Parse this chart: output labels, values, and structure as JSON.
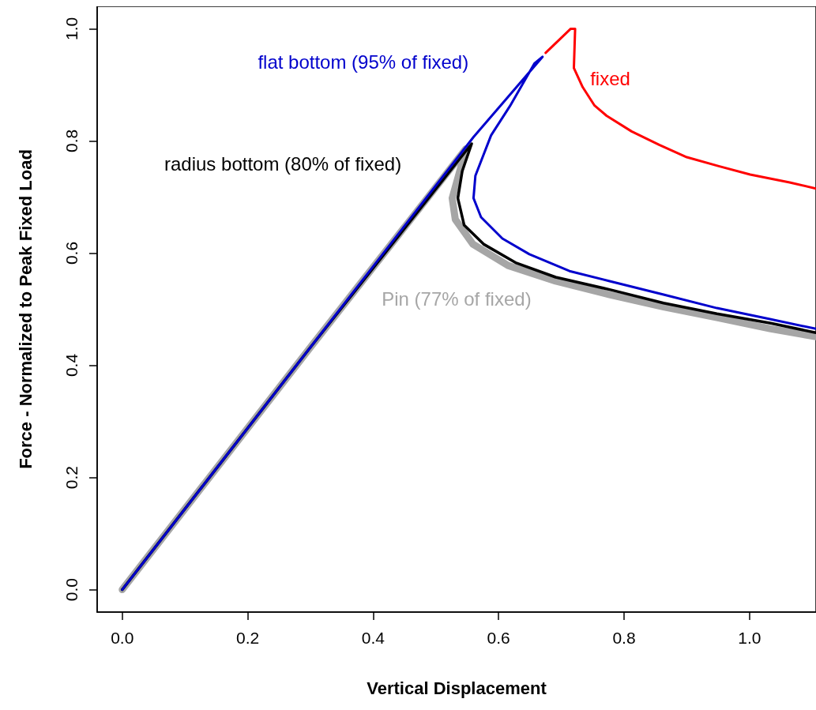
{
  "chart_data": {
    "type": "line",
    "xlabel": "Vertical Displacement",
    "ylabel": "Force - Normalized to Peak Fixed Load",
    "xlim": [
      -0.04,
      1.106
    ],
    "ylim": [
      -0.04,
      1.04
    ],
    "xticks": [
      {
        "value": 0,
        "label": "0.0"
      },
      {
        "value": 0.2,
        "label": "0.2"
      },
      {
        "value": 0.4,
        "label": "0.4"
      },
      {
        "value": 0.6,
        "label": "0.6"
      },
      {
        "value": 0.8,
        "label": "0.8"
      },
      {
        "value": 1,
        "label": "1.0"
      }
    ],
    "yticks": [
      {
        "value": 0,
        "label": "0.0"
      },
      0.2,
      0.4,
      0.6,
      0.8,
      {
        "value": 1,
        "label": "1.0"
      }
    ],
    "grid": false,
    "legend": false,
    "marker": "none",
    "line_style": "solid",
    "series": [
      {
        "name": "Pin (77% of fixed)",
        "color": "#a6a6a6",
        "x": [
          0,
          0.3,
          0.548,
          0.526,
          0.531,
          0.559,
          0.615,
          0.691,
          0.777,
          0.863,
          0.948,
          1.034,
          1.106
        ],
        "values": [
          0,
          0.432,
          0.786,
          0.698,
          0.66,
          0.616,
          0.578,
          0.55,
          0.526,
          0.504,
          0.485,
          0.465,
          0.451
        ]
      },
      {
        "name": "fixed",
        "color": "#ff0000",
        "x": [
          0.675,
          0.715,
          0.722,
          0.72,
          0.734,
          0.753,
          0.772,
          0.812,
          0.856,
          0.9,
          0.951,
          1.001,
          1.064,
          1.106
        ],
        "values": [
          0.957,
          1.0,
          1.0,
          0.93,
          0.896,
          0.863,
          0.845,
          0.817,
          0.793,
          0.771,
          0.755,
          0.74,
          0.726,
          0.715
        ]
      },
      {
        "name": "radius bottom (80% of fixed)",
        "color": "#000000",
        "x": [
          0,
          0.3,
          0.557,
          0.542,
          0.535,
          0.545,
          0.576,
          0.627,
          0.691,
          0.777,
          0.863,
          0.948,
          1.034,
          1.106
        ],
        "values": [
          0,
          0.432,
          0.795,
          0.746,
          0.698,
          0.65,
          0.616,
          0.583,
          0.557,
          0.535,
          0.511,
          0.492,
          0.475,
          0.458
        ]
      },
      {
        "name": "flat bottom (95% of fixed)",
        "color": "#0000cc",
        "x": [
          0,
          0.3,
          0.56,
          0.67,
          0.657,
          0.618,
          0.588,
          0.563,
          0.56,
          0.572,
          0.606,
          0.649,
          0.713,
          0.777,
          0.863,
          0.948,
          1.034,
          1.106
        ],
        "values": [
          0,
          0.432,
          0.807,
          0.95,
          0.938,
          0.862,
          0.81,
          0.738,
          0.698,
          0.664,
          0.626,
          0.598,
          0.568,
          0.55,
          0.526,
          0.502,
          0.482,
          0.465
        ]
      }
    ]
  }
}
